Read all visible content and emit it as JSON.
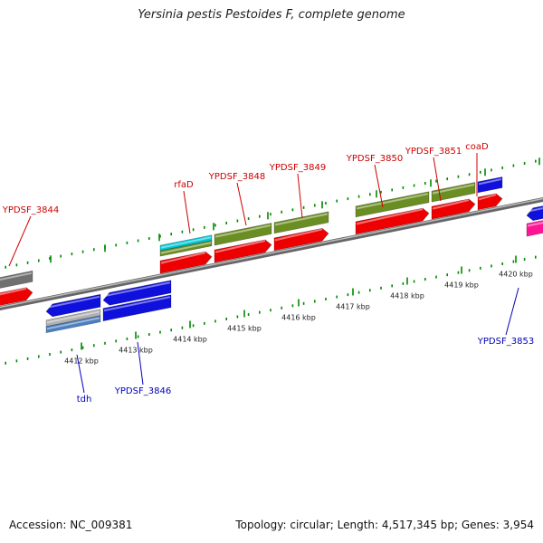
{
  "title": "Yersinia pestis Pestoides F, complete genome",
  "footer": {
    "accession_label": "Accession:",
    "accession": "NC_009381",
    "topology_text": "Topology: circular; Length: 4,517,345 bp; Genes: 3,954"
  },
  "colors": {
    "forward_label": "#cc0000",
    "reverse_label": "#0000bb",
    "red_gene": "#ee0000",
    "blue_gene": "#1010dd",
    "olive_gene": "#6b8e23",
    "cyan_gene": "#00c8d8",
    "gray_gene": "#707070",
    "light_gray_gene": "#b0b0b0",
    "steel_blue_gene": "#4b7fc0",
    "magenta_gene": "#ff1493",
    "backbone": "#888888",
    "tick": "#008800"
  },
  "scale": {
    "unit": "kbp",
    "ticks": [
      {
        "position": 4412,
        "label": "4412 kbp"
      },
      {
        "position": 4413,
        "label": "4413 kbp"
      },
      {
        "position": 4414,
        "label": "4414 kbp"
      },
      {
        "position": 4415,
        "label": "4415 kbp"
      },
      {
        "position": 4416,
        "label": "4416 kbp"
      },
      {
        "position": 4417,
        "label": "4417 kbp"
      },
      {
        "position": 4418,
        "label": "4418 kbp"
      },
      {
        "position": 4419,
        "label": "4419 kbp"
      },
      {
        "position": 4420,
        "label": "4420 kbp"
      }
    ]
  },
  "gene_labels": {
    "forward": [
      "YPDSF_3844",
      "rfaD",
      "YPDSF_3848",
      "YPDSF_3849",
      "YPDSF_3850",
      "YPDSF_3851",
      "coaD"
    ],
    "reverse": [
      "tdh",
      "YPDSF_3846",
      "YPDSF_3853"
    ]
  },
  "genes": {
    "forward": [
      {
        "name": "YPDSF_3844",
        "start": 4410.4,
        "end": 4411.6,
        "color_row1": "gray_gene",
        "color_row2": "red_gene"
      },
      {
        "name": "rfaD",
        "start": 4413.95,
        "end": 4414.9,
        "color_row1": "cyan_gene",
        "color_row1b": "olive_gene",
        "color_row2": "red_gene"
      },
      {
        "name": "YPDSF_3848",
        "start": 4414.95,
        "end": 4416.0,
        "color_row1": "olive_gene",
        "color_row2": "red_gene"
      },
      {
        "name": "YPDSF_3849",
        "start": 4416.05,
        "end": 4417.05,
        "color_row1": "olive_gene",
        "color_row2": "red_gene"
      },
      {
        "name": "YPDSF_3850",
        "start": 4417.55,
        "end": 4418.9,
        "color_row1": "olive_gene",
        "color_row2": "red_gene"
      },
      {
        "name": "YPDSF_3851",
        "start": 4418.95,
        "end": 4419.75,
        "color_row1": "olive_gene",
        "color_row2": "red_gene"
      },
      {
        "name": "coaD",
        "start": 4419.8,
        "end": 4420.25,
        "color_row1": "blue_gene",
        "color_row2": "red_gene"
      }
    ],
    "reverse": [
      {
        "name": "tdh",
        "start": 4411.85,
        "end": 4412.85,
        "color_row1": "blue_gene",
        "color_row2": "light_gray_gene",
        "color_row2b": "steel_blue_gene"
      },
      {
        "name": "YPDSF_3846",
        "start": 4412.9,
        "end": 4414.15,
        "color_row1": "blue_gene",
        "color_row2": "blue_gene"
      },
      {
        "name": "YPDSF_3853",
        "start": 4420.7,
        "end": 4421.5,
        "color_row1": "blue_gene",
        "color_row2": "magenta_gene"
      }
    ]
  }
}
